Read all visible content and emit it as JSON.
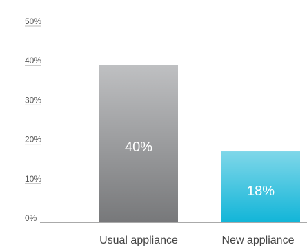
{
  "chart_data": {
    "type": "bar",
    "categories": [
      "Usual appliance",
      "New appliance"
    ],
    "values": [
      40,
      18
    ],
    "data_labels": [
      "40%",
      "18%"
    ],
    "ylim": [
      0,
      50
    ],
    "y_ticks": [
      0,
      10,
      20,
      30,
      40,
      50
    ],
    "y_tick_labels": [
      "0%",
      "10%",
      "20%",
      "30%",
      "40%",
      "50%"
    ],
    "title": "",
    "xlabel": "",
    "ylabel": "",
    "grid": false,
    "legend": "none",
    "colors": {
      "bar_1_top": "#bfc0c2",
      "bar_1_bottom": "#77787a",
      "bar_2_top": "#7fd7e9",
      "bar_2_bottom": "#12b5d8",
      "axis": "#aaaaaa",
      "tick_underline": "#bbbbbb"
    }
  }
}
